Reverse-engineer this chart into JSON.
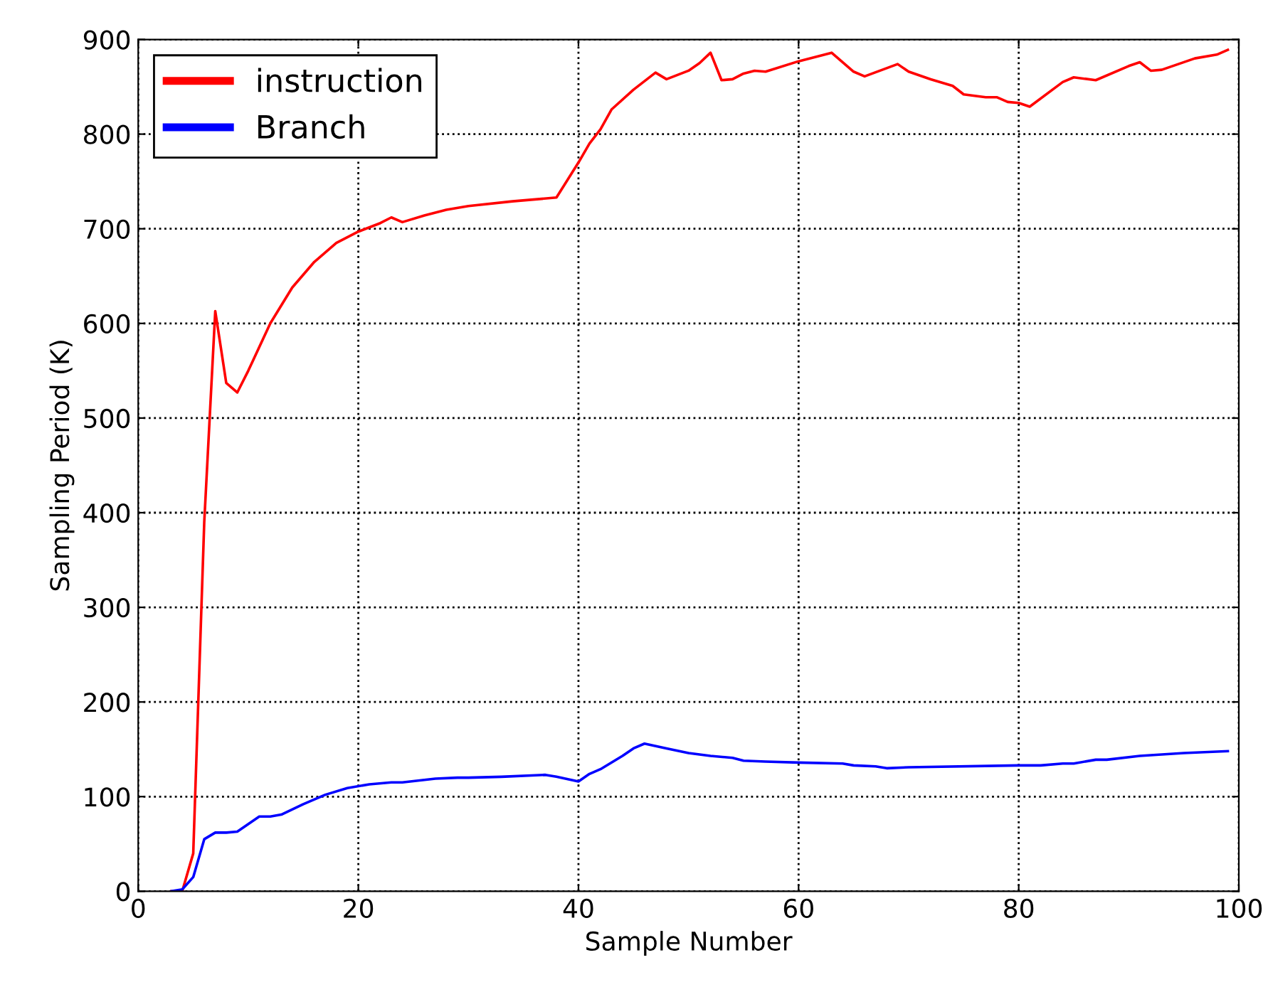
{
  "chart_data": {
    "type": "line",
    "xlabel": "Sample Number",
    "ylabel": "Sampling Period (K)",
    "xlim": [
      0,
      100
    ],
    "ylim": [
      0,
      900
    ],
    "xticks": [
      0,
      20,
      40,
      60,
      80,
      100
    ],
    "yticks": [
      0,
      100,
      200,
      300,
      400,
      500,
      600,
      700,
      800,
      900
    ],
    "grid": true,
    "legend": "top left",
    "line_style": "solid",
    "series": [
      {
        "name": "instruction",
        "color": "#ff0000",
        "x": [
          3,
          4,
          5,
          6,
          7,
          8,
          9,
          10,
          12,
          14,
          16,
          18,
          20,
          22,
          23,
          24,
          26,
          28,
          30,
          34,
          38,
          40,
          41,
          42,
          43,
          45,
          47,
          48,
          50,
          51,
          52,
          53,
          54,
          55,
          56,
          57,
          60,
          63,
          65,
          66,
          69,
          70,
          72,
          74,
          75,
          77,
          78,
          79,
          80,
          81,
          84,
          85,
          87,
          90,
          91,
          92,
          93,
          96,
          98,
          99
        ],
        "values": [
          0,
          0,
          40,
          390,
          613,
          537,
          527,
          550,
          600,
          638,
          665,
          685,
          697,
          706,
          712,
          707,
          714,
          720,
          724,
          729,
          733,
          770,
          790,
          805,
          826,
          847,
          865,
          858,
          867,
          875,
          886,
          857,
          858,
          864,
          867,
          866,
          877,
          886,
          866,
          861,
          874,
          866,
          858,
          851,
          842,
          839,
          839,
          834,
          833,
          829,
          855,
          860,
          857,
          872,
          876,
          867,
          868,
          880,
          884,
          889
        ]
      },
      {
        "name": "Branch",
        "color": "#0000ff",
        "x": [
          3,
          4,
          5,
          6,
          7,
          8,
          9,
          11,
          12,
          13,
          15,
          17,
          19,
          21,
          23,
          24,
          27,
          29,
          30,
          33,
          37,
          38,
          40,
          41,
          42,
          44,
          45,
          46,
          48,
          50,
          52,
          54,
          55,
          57,
          60,
          64,
          65,
          67,
          68,
          70,
          80,
          82,
          84,
          85,
          87,
          88,
          91,
          95,
          99
        ],
        "values": [
          0,
          2,
          15,
          55,
          62,
          62,
          63,
          79,
          79,
          81,
          92,
          102,
          109,
          113,
          115,
          115,
          119,
          120,
          120,
          121,
          123,
          121,
          116,
          124,
          129,
          143,
          151,
          156,
          151,
          146,
          143,
          141,
          138,
          137,
          136,
          135,
          133,
          132,
          130,
          131,
          133,
          133,
          135,
          135,
          139,
          139,
          143,
          146,
          148
        ]
      }
    ]
  }
}
